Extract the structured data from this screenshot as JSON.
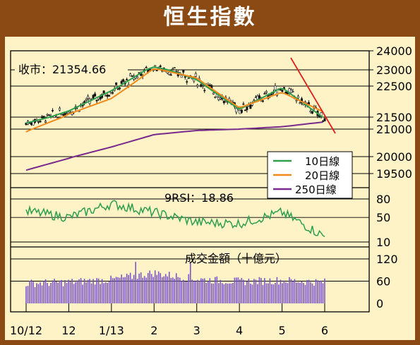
{
  "title": "恒生指數",
  "close_label": "收市：21354.66",
  "rsi_label": "9RSI：18.86",
  "turnover_label": "成交金額（十億元）",
  "legend": [
    {
      "label": "10日線",
      "color": "#2e9e4f"
    },
    {
      "label": "20日線",
      "color": "#f08a1c"
    },
    {
      "label": "250日線",
      "color": "#7a2a8c"
    }
  ],
  "colors": {
    "frame": "#8b4a14",
    "panel": "#fdf3c7",
    "candle": "#111111",
    "trend": "#e0201a",
    "rsi": "#2e9e4f",
    "volume": "#7a55c8"
  },
  "x_labels": [
    "10/12",
    "12",
    "1/13",
    "2",
    "3",
    "4",
    "5",
    "6"
  ],
  "chart_data": [
    {
      "type": "line",
      "name": "price",
      "y_ticks": [
        24000,
        23000,
        22500,
        21500,
        21000,
        20000,
        19500
      ],
      "ylim": [
        19500,
        24000
      ],
      "x": [
        "10/12",
        "12",
        "1/13",
        "2",
        "3",
        "4",
        "5",
        "6"
      ],
      "series": [
        {
          "name": "10日線",
          "values": [
            21250,
            21700,
            22350,
            23150,
            22700,
            21750,
            22450,
            21450
          ]
        },
        {
          "name": "20日線",
          "values": [
            20900,
            21600,
            22100,
            23050,
            22750,
            21800,
            22300,
            21650
          ]
        },
        {
          "name": "250日線",
          "values": [
            19600,
            19950,
            20350,
            20800,
            20950,
            21000,
            21100,
            21300
          ]
        }
      ],
      "close": 21354.66
    },
    {
      "type": "line",
      "name": "rsi",
      "y_ticks": [
        80,
        50,
        10
      ],
      "ylim": [
        10,
        80
      ],
      "x": [
        "10/12",
        "12",
        "1/13",
        "2",
        "3",
        "4",
        "5",
        "6"
      ],
      "series": [
        {
          "name": "9RSI",
          "values": [
            60,
            50,
            72,
            58,
            42,
            40,
            58,
            18.86
          ]
        }
      ]
    },
    {
      "type": "bar",
      "name": "turnover",
      "y_ticks": [
        120,
        60,
        0
      ],
      "ylim": [
        0,
        160
      ],
      "x": [
        "10/12",
        "12",
        "1/13",
        "2",
        "3",
        "4",
        "5",
        "6"
      ],
      "values": [
        52,
        55,
        62,
        80,
        63,
        57,
        60,
        55
      ]
    }
  ]
}
